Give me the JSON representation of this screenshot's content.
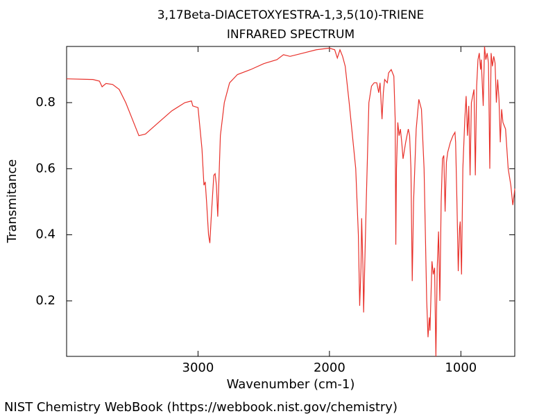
{
  "chart_data": {
    "type": "line",
    "title": "3,17Beta-DIACETOXYESTRA-1,3,5(10)-TRIENE",
    "subtitle": "INFRARED SPECTRUM",
    "xlabel": "Wavenumber (cm-1)",
    "ylabel": "Transmitance",
    "source": "NIST Chemistry WebBook (https://webbook.nist.gov/chemistry)",
    "color": "#e8302a",
    "xlim": [
      4000,
      590
    ],
    "xticks": [
      3000,
      2000,
      1000
    ],
    "ylim": [
      0.032,
      0.97
    ],
    "yticks": [
      0.2,
      0.4,
      0.6,
      0.8
    ],
    "x": [
      4000,
      3800,
      3750,
      3730,
      3700,
      3650,
      3600,
      3550,
      3500,
      3450,
      3400,
      3300,
      3200,
      3100,
      3050,
      3040,
      3000,
      2970,
      2955,
      2945,
      2935,
      2920,
      2910,
      2900,
      2880,
      2870,
      2860,
      2850,
      2830,
      2800,
      2760,
      2700,
      2600,
      2500,
      2400,
      2350,
      2300,
      2200,
      2100,
      2000,
      1960,
      1940,
      1920,
      1900,
      1880,
      1850,
      1800,
      1780,
      1770,
      1760,
      1755,
      1745,
      1740,
      1720,
      1700,
      1680,
      1660,
      1640,
      1625,
      1615,
      1600,
      1590,
      1580,
      1560,
      1550,
      1530,
      1510,
      1500,
      1495,
      1490,
      1480,
      1470,
      1460,
      1450,
      1440,
      1420,
      1400,
      1390,
      1380,
      1370,
      1360,
      1340,
      1320,
      1300,
      1280,
      1260,
      1250,
      1240,
      1235,
      1220,
      1210,
      1200,
      1190,
      1180,
      1170,
      1160,
      1150,
      1140,
      1130,
      1120,
      1110,
      1100,
      1080,
      1060,
      1045,
      1040,
      1030,
      1020,
      1010,
      1005,
      995,
      985,
      970,
      960,
      950,
      940,
      930,
      920,
      910,
      900,
      890,
      880,
      870,
      860,
      850,
      845,
      830,
      820,
      810,
      800,
      790,
      780,
      770,
      760,
      750,
      740,
      730,
      720,
      710,
      700,
      690,
      680,
      660,
      640,
      620,
      605,
      595,
      590
    ],
    "values": [
      0.872,
      0.87,
      0.865,
      0.848,
      0.858,
      0.855,
      0.84,
      0.8,
      0.75,
      0.7,
      0.705,
      0.74,
      0.775,
      0.8,
      0.805,
      0.79,
      0.785,
      0.66,
      0.55,
      0.56,
      0.5,
      0.4,
      0.375,
      0.45,
      0.58,
      0.585,
      0.55,
      0.455,
      0.7,
      0.8,
      0.86,
      0.885,
      0.9,
      0.918,
      0.93,
      0.945,
      0.94,
      0.95,
      0.96,
      0.965,
      0.96,
      0.935,
      0.96,
      0.94,
      0.91,
      0.8,
      0.6,
      0.4,
      0.185,
      0.3,
      0.45,
      0.3,
      0.165,
      0.5,
      0.8,
      0.85,
      0.86,
      0.86,
      0.83,
      0.86,
      0.75,
      0.83,
      0.87,
      0.86,
      0.89,
      0.9,
      0.88,
      0.75,
      0.37,
      0.6,
      0.74,
      0.7,
      0.72,
      0.68,
      0.63,
      0.68,
      0.72,
      0.7,
      0.6,
      0.26,
      0.5,
      0.72,
      0.81,
      0.78,
      0.6,
      0.2,
      0.09,
      0.15,
      0.11,
      0.32,
      0.28,
      0.3,
      0.032,
      0.3,
      0.41,
      0.2,
      0.5,
      0.63,
      0.64,
      0.47,
      0.62,
      0.65,
      0.68,
      0.7,
      0.71,
      0.68,
      0.5,
      0.29,
      0.42,
      0.44,
      0.28,
      0.6,
      0.75,
      0.82,
      0.7,
      0.79,
      0.58,
      0.8,
      0.82,
      0.84,
      0.58,
      0.85,
      0.93,
      0.95,
      0.9,
      0.93,
      0.79,
      0.97,
      0.93,
      0.95,
      0.92,
      0.6,
      0.95,
      0.91,
      0.94,
      0.92,
      0.8,
      0.87,
      0.81,
      0.68,
      0.78,
      0.74,
      0.72,
      0.6,
      0.55,
      0.49,
      0.52,
      0.54
    ]
  }
}
